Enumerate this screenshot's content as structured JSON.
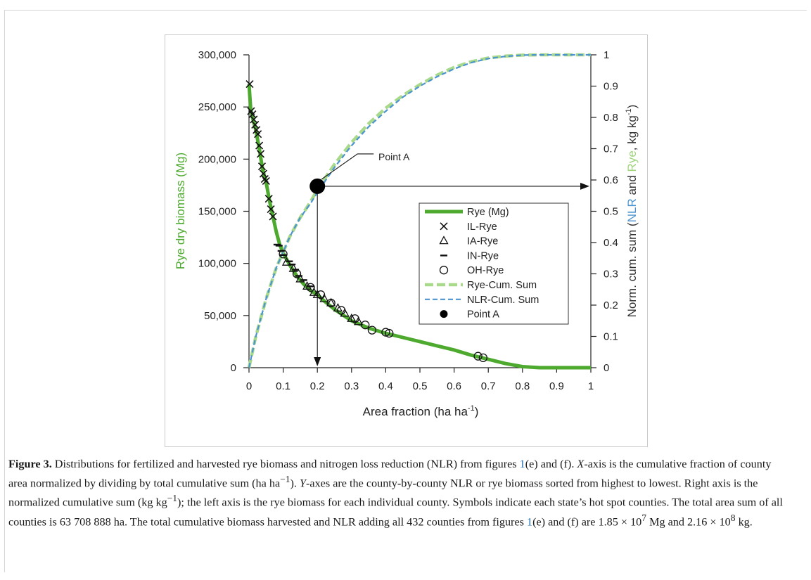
{
  "chart_data": {
    "type": "line",
    "left_axis": {
      "label": "Rye dry biomass (Mg)",
      "range": [
        0,
        300000
      ],
      "ticks": [
        "0",
        "50,000",
        "100,000",
        "150,000",
        "200,000",
        "250,000",
        "300,000"
      ],
      "tick_values": [
        0,
        50000,
        100000,
        150000,
        200000,
        250000,
        300000
      ]
    },
    "right_axis": {
      "label_parts": [
        "Norm. cum. sum (",
        "NLR",
        " and ",
        "Rye",
        ", kg kg",
        "-1",
        ")"
      ],
      "range": [
        0,
        1
      ],
      "ticks": [
        "0",
        "0.1",
        "0.2",
        "0.3",
        "0.4",
        "0.5",
        "0.6",
        "0.7",
        "0.8",
        "0.9",
        "1"
      ],
      "tick_values": [
        0,
        0.1,
        0.2,
        0.3,
        0.4,
        0.5,
        0.6,
        0.7,
        0.8,
        0.9,
        1
      ]
    },
    "x_axis": {
      "label": "Area fraction (ha ha",
      "label_sup": "-1",
      "label_end": ")",
      "range": [
        0,
        1
      ],
      "ticks": [
        "0",
        "0.1",
        "0.2",
        "0.3",
        "0.4",
        "0.5",
        "0.6",
        "0.7",
        "0.8",
        "0.9",
        "1"
      ],
      "tick_values": [
        0,
        0.1,
        0.2,
        0.3,
        0.4,
        0.5,
        0.6,
        0.7,
        0.8,
        0.9,
        1
      ]
    },
    "series": [
      {
        "name": "Rye (Mg)",
        "axis": "left",
        "color": "#4daa2e",
        "x": [
          0,
          0.005,
          0.01,
          0.02,
          0.03,
          0.04,
          0.05,
          0.06,
          0.07,
          0.08,
          0.09,
          0.1,
          0.12,
          0.14,
          0.16,
          0.18,
          0.2,
          0.22,
          0.25,
          0.3,
          0.35,
          0.4,
          0.45,
          0.5,
          0.55,
          0.6,
          0.65,
          0.7,
          0.75,
          0.8,
          0.85,
          0.9,
          0.95,
          1.0
        ],
        "y": [
          272000,
          248000,
          240000,
          228000,
          210000,
          190000,
          178000,
          160000,
          145000,
          130000,
          118000,
          110000,
          98000,
          88000,
          80000,
          74000,
          70000,
          64000,
          56000,
          45000,
          38000,
          33000,
          29000,
          25000,
          21000,
          17000,
          12000,
          8000,
          4000,
          1000,
          0,
          0,
          0,
          0
        ]
      },
      {
        "name": "Rye-Cum. Sum",
        "axis": "right",
        "color": "#a9d98a",
        "x": [
          0,
          0.02,
          0.05,
          0.08,
          0.1,
          0.12,
          0.15,
          0.18,
          0.2,
          0.25,
          0.3,
          0.35,
          0.4,
          0.45,
          0.5,
          0.55,
          0.6,
          0.65,
          0.7,
          0.75,
          0.8,
          0.85,
          0.9,
          0.95,
          1.0
        ],
        "y": [
          0,
          0.1,
          0.22,
          0.32,
          0.37,
          0.42,
          0.48,
          0.53,
          0.57,
          0.65,
          0.72,
          0.78,
          0.83,
          0.87,
          0.905,
          0.935,
          0.96,
          0.978,
          0.99,
          0.996,
          0.999,
          1,
          1,
          1,
          1
        ]
      },
      {
        "name": "NLR-Cum. Sum",
        "axis": "right",
        "color": "#4c94cf",
        "x": [
          0,
          0.02,
          0.05,
          0.08,
          0.1,
          0.12,
          0.15,
          0.18,
          0.2,
          0.25,
          0.3,
          0.35,
          0.4,
          0.45,
          0.5,
          0.55,
          0.6,
          0.65,
          0.7,
          0.75,
          0.8,
          0.85,
          0.9,
          0.95,
          1.0
        ],
        "y": [
          0,
          0.1,
          0.22,
          0.32,
          0.37,
          0.42,
          0.48,
          0.525,
          0.56,
          0.64,
          0.71,
          0.77,
          0.82,
          0.865,
          0.9,
          0.93,
          0.955,
          0.975,
          0.988,
          0.995,
          0.999,
          1,
          1,
          1,
          1
        ]
      }
    ],
    "markers": {
      "IL-Rye": {
        "symbol": "x",
        "points": [
          [
            0.002,
            272000
          ],
          [
            0.006,
            246000
          ],
          [
            0.01,
            243000
          ],
          [
            0.014,
            238000
          ],
          [
            0.018,
            233000
          ],
          [
            0.022,
            228000
          ],
          [
            0.026,
            224000
          ],
          [
            0.03,
            213000
          ],
          [
            0.034,
            205000
          ],
          [
            0.038,
            193000
          ],
          [
            0.042,
            186000
          ],
          [
            0.046,
            181000
          ],
          [
            0.05,
            179000
          ],
          [
            0.058,
            162000
          ],
          [
            0.064,
            152000
          ],
          [
            0.07,
            145000
          ]
        ]
      },
      "IA-Rye": {
        "symbol": "triangle",
        "points": [
          [
            0.11,
            101000
          ],
          [
            0.13,
            95000
          ],
          [
            0.15,
            85000
          ],
          [
            0.17,
            78000
          ],
          [
            0.19,
            72000
          ],
          [
            0.2,
            70000
          ],
          [
            0.22,
            66000
          ],
          [
            0.24,
            62000
          ],
          [
            0.26,
            57000
          ],
          [
            0.28,
            52000
          ],
          [
            0.3,
            47000
          ],
          [
            0.32,
            44000
          ]
        ]
      },
      "IN-Rye": {
        "symbol": "dash",
        "points": [
          [
            0.082,
            118000
          ],
          [
            0.088,
            117000
          ],
          [
            0.094,
            112000
          ],
          [
            0.1,
            108000
          ],
          [
            0.118,
            102000
          ],
          [
            0.126,
            99000
          ],
          [
            0.136,
            94000
          ],
          [
            0.146,
            88000
          ],
          [
            0.16,
            84000
          ],
          [
            0.18,
            78000
          ]
        ]
      },
      "OH-Rye": {
        "symbol": "circle",
        "points": [
          [
            0.1,
            109000
          ],
          [
            0.14,
            90000
          ],
          [
            0.18,
            77000
          ],
          [
            0.21,
            70000
          ],
          [
            0.24,
            62000
          ],
          [
            0.27,
            55000
          ],
          [
            0.31,
            47000
          ],
          [
            0.34,
            41000
          ],
          [
            0.36,
            36000
          ],
          [
            0.4,
            34000
          ],
          [
            0.41,
            33000
          ],
          [
            0.67,
            11000
          ],
          [
            0.685,
            9500
          ]
        ]
      }
    },
    "point_a": {
      "name": "Point A",
      "x": 0.2,
      "y_right": 0.58
    },
    "legend": {
      "placement": "center-right",
      "entries": [
        "Rye (Mg)",
        "IL-Rye",
        "IA-Rye",
        "IN-Rye",
        "OH-Rye",
        "Rye-Cum. Sum",
        "NLR-Cum. Sum",
        "Point A"
      ]
    },
    "annotation": "Point A"
  },
  "caption": {
    "label": "Figure 3.",
    "t1": " Distributions for fertilized and harvested rye biomass and nitrogen loss reduction (NLR) from figures ",
    "ref": "1",
    "t2": "(e) and (f). ",
    "x_italic": "X",
    "t3": "-axis is the cumulative fraction of county area normalized by dividing by total cumulative sum (ha ha",
    "sup1": "−1",
    "t4": "). ",
    "y_italic": "Y",
    "t5": "-axes are the county-by-county NLR or rye biomass sorted from highest to lowest. Right axis is the normalized cumulative sum (kg kg",
    "sup2": "−1",
    "t6": "); the left axis is the rye biomass for each individual county. Symbols indicate each state’s hot spot counties. The total area sum of all counties is 63 708 888 ha. The total cumulative biomass harvested and NLR adding all 432 counties from figures ",
    "t7": "(e) and (f) are 1.85 × 10",
    "sup3": "7",
    "t8": " Mg and 2.16 × 10",
    "sup4": "8",
    "t9": " kg."
  }
}
